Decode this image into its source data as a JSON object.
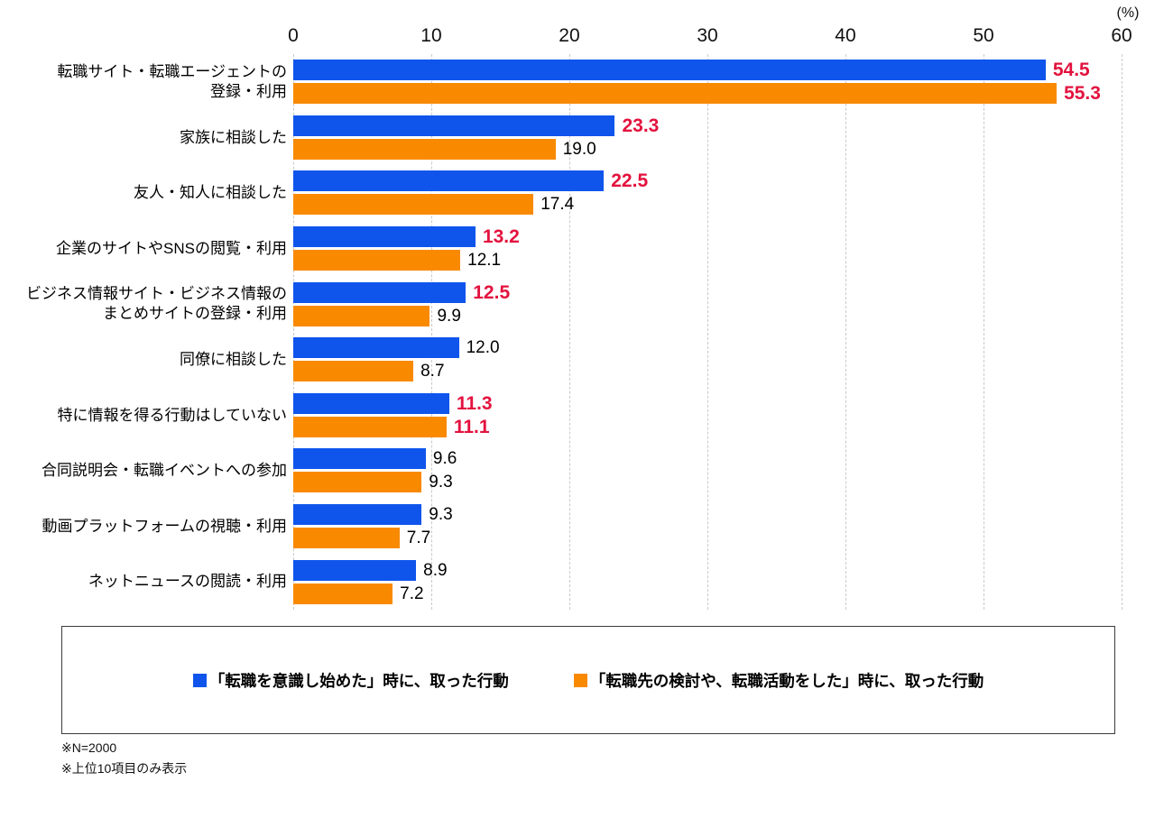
{
  "chart_data": {
    "type": "bar",
    "orientation": "horizontal",
    "title": "",
    "unit_label": "(%)",
    "xlim": [
      0,
      60
    ],
    "x_ticks": [
      0,
      10,
      20,
      30,
      40,
      50,
      60
    ],
    "grid": "vertical dashed",
    "legend_position": "bottom boxed",
    "categories": [
      [
        "転職サイト・転職エージェントの",
        "登録・利用"
      ],
      [
        "家族に相談した"
      ],
      [
        "友人・知人に相談した"
      ],
      [
        "企業のサイトやSNSの閲覧・利用"
      ],
      [
        "ビジネス情報サイト・ビジネス情報の",
        "まとめサイトの登録・利用"
      ],
      [
        "同僚に相談した"
      ],
      [
        "特に情報を得る行動はしていない"
      ],
      [
        "合同説明会・転職イベントへの参加"
      ],
      [
        "動画プラットフォームの視聴・利用"
      ],
      [
        "ネットニュースの閲読・利用"
      ]
    ],
    "series": [
      {
        "name": "「転職を意識し始めた」時に、取った行動",
        "color": "#0f55ec",
        "values": [
          54.5,
          23.3,
          22.5,
          13.2,
          12.5,
          12.0,
          11.3,
          9.6,
          9.3,
          8.9
        ],
        "emphasized": [
          true,
          true,
          true,
          true,
          true,
          false,
          true,
          false,
          false,
          false
        ]
      },
      {
        "name": "「転職先の検討や、転職活動をした」時に、取った行動",
        "color": "#f98a00",
        "values": [
          55.3,
          19.0,
          17.4,
          12.1,
          9.9,
          8.7,
          11.1,
          9.3,
          7.7,
          7.2
        ],
        "emphasized": [
          true,
          false,
          false,
          false,
          false,
          false,
          true,
          false,
          false,
          false
        ]
      }
    ],
    "value_label_colors": {
      "emphasized": "#e3123e",
      "normal": "#000000"
    }
  },
  "legend": {
    "items": [
      {
        "label": "「転職を意識し始めた」時に、取った行動",
        "color": "#0f55ec"
      },
      {
        "label": "「転職先の検討や、転職活動をした」時に、取った行動",
        "color": "#f98a00"
      }
    ]
  },
  "footnotes": {
    "line1": "※N=2000",
    "line2": "※上位10項目のみ表示"
  }
}
